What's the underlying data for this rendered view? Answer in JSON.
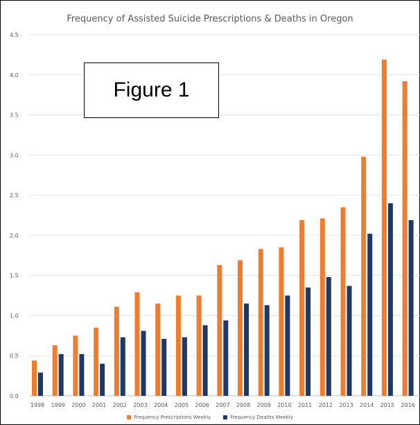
{
  "chart_data": {
    "type": "bar",
    "title": "Frequency of Assisted Suicide Prescriptions & Deaths in Oregon",
    "annotation": "Figure 1",
    "categories": [
      "1998",
      "1999",
      "2000",
      "2001",
      "2002",
      "2003",
      "2004",
      "2005",
      "2006",
      "2007",
      "2008",
      "2009",
      "2010",
      "2011",
      "2012",
      "2013",
      "2014",
      "2015",
      "2016"
    ],
    "series": [
      {
        "name": "Frequency Prescriptions Weekly",
        "color": "#ED7D31",
        "values": [
          0.44,
          0.63,
          0.75,
          0.85,
          1.11,
          1.29,
          1.15,
          1.25,
          1.25,
          1.63,
          1.69,
          1.83,
          1.85,
          2.19,
          2.21,
          2.35,
          2.98,
          4.19,
          3.92
        ]
      },
      {
        "name": "Frequency Deaths Weekly",
        "color": "#203864",
        "values": [
          0.29,
          0.52,
          0.52,
          0.4,
          0.73,
          0.81,
          0.71,
          0.73,
          0.88,
          0.94,
          1.15,
          1.13,
          1.25,
          1.35,
          1.48,
          1.37,
          2.02,
          2.4,
          2.19
        ]
      }
    ],
    "yticks": [
      "0.0",
      "0.5",
      "1.0",
      "1.5",
      "2.0",
      "2.5",
      "3.0",
      "3.5",
      "4.0",
      "4.5"
    ],
    "ylim": [
      0,
      4.5
    ],
    "grid": true,
    "legend": "bottom"
  }
}
